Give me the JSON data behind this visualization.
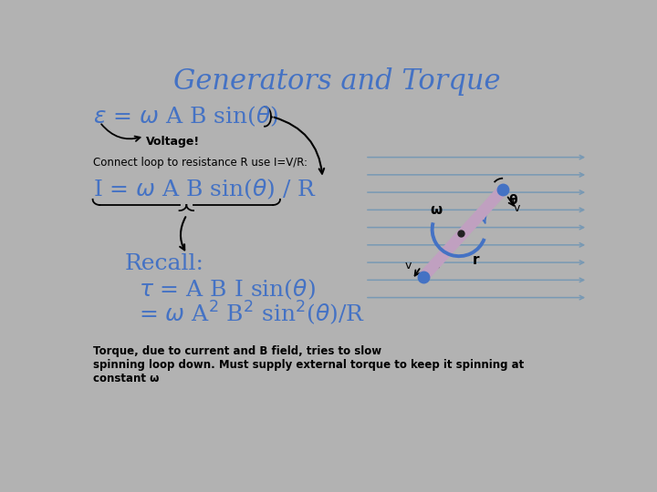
{
  "bg_color": "#b2b2b2",
  "title": "Generators and Torque",
  "title_color": "#4472c4",
  "title_fontsize": 22,
  "eq1_color": "#4472c4",
  "eq1_fontsize": 18,
  "label_voltage": "Voltage!",
  "label_connect": "Connect loop to resistance R use I=V/R:",
  "eq2_color": "#4472c4",
  "eq2_fontsize": 18,
  "recall_fontsize": 18,
  "recall_color": "#4472c4",
  "eq3_color": "#4472c4",
  "eq3_fontsize": 18,
  "footer": "Torque, due to current and B field, tries to slow\nspinning loop down. Must supply external torque to keep it spinning at\nconstant ω",
  "footer_fontsize": 8.5,
  "line_color": "#7899b4",
  "rod_color": "#c0a0c0",
  "dot_color": "#4472c4",
  "omega_arrow_color": "#4472c4"
}
